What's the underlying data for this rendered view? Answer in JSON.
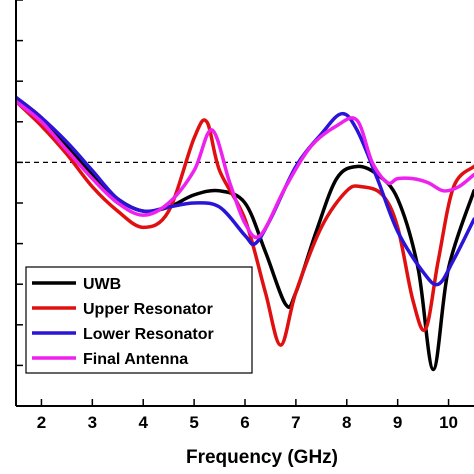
{
  "chart_data": {
    "type": "line",
    "title": "",
    "xlabel": "Frequency (GHz)",
    "ylabel": "",
    "xlim": [
      1.5,
      10.5
    ],
    "ylim": [
      -50,
      0
    ],
    "x_ticks": [
      2,
      3,
      4,
      5,
      6,
      7,
      8,
      9,
      10
    ],
    "x_tick_labels": [
      "2",
      "3",
      "4",
      "5",
      "6",
      "7",
      "8",
      "9",
      "10"
    ],
    "y_ticks": [
      -45,
      -40,
      -35,
      -30,
      -25,
      -20,
      -15,
      -10,
      -5,
      0
    ],
    "reference_line": {
      "y": -20,
      "style": "dashed"
    },
    "grid": false,
    "legend_position": "bottom-left",
    "series": [
      {
        "name": "UWB",
        "color": "#000000",
        "x": [
          1.5,
          2.0,
          2.5,
          3.0,
          3.5,
          4.0,
          4.5,
          5.0,
          5.5,
          6.0,
          6.4,
          6.8,
          7.0,
          7.4,
          7.8,
          8.2,
          8.6,
          9.0,
          9.4,
          9.7,
          10.0,
          10.5
        ],
        "y": [
          -12.0,
          -14.5,
          -18.0,
          -21.5,
          -24.5,
          -26.0,
          -25.5,
          -24.0,
          -23.5,
          -25.0,
          -31.0,
          -37.5,
          -36.0,
          -28.5,
          -22.0,
          -20.5,
          -21.5,
          -24.5,
          -33.0,
          -45.5,
          -33.0,
          -23.5
        ]
      },
      {
        "name": "Upper Resonator",
        "color": "#e01010",
        "x": [
          1.5,
          2.0,
          2.5,
          3.0,
          3.5,
          4.0,
          4.5,
          5.0,
          5.25,
          5.5,
          6.0,
          6.4,
          6.7,
          7.0,
          7.5,
          8.0,
          8.3,
          8.7,
          9.0,
          9.3,
          9.55,
          9.8,
          10.1,
          10.5
        ],
        "y": [
          -12.5,
          -15.5,
          -19.0,
          -23.0,
          -26.0,
          -28.0,
          -26.0,
          -17.0,
          -15.0,
          -21.0,
          -27.0,
          -36.0,
          -42.5,
          -36.0,
          -28.0,
          -23.5,
          -23.0,
          -24.0,
          -28.0,
          -37.0,
          -40.5,
          -32.0,
          -23.0,
          -20.5
        ]
      },
      {
        "name": "Lower Resonator",
        "color": "#2a14d8",
        "x": [
          1.5,
          2.0,
          2.5,
          3.0,
          3.5,
          4.0,
          4.5,
          5.0,
          5.5,
          6.0,
          6.2,
          6.5,
          7.0,
          7.5,
          7.9,
          8.2,
          8.6,
          9.0,
          9.5,
          9.8,
          10.1,
          10.5
        ],
        "y": [
          -12.0,
          -14.5,
          -17.5,
          -21.0,
          -24.5,
          -26.0,
          -25.5,
          -25.0,
          -25.5,
          -29.0,
          -30.0,
          -27.0,
          -20.5,
          -16.5,
          -14.0,
          -16.0,
          -22.0,
          -28.5,
          -33.5,
          -35.0,
          -32.0,
          -27.0
        ]
      },
      {
        "name": "Final Antenna",
        "color": "#ee22ee",
        "x": [
          1.5,
          2.0,
          2.5,
          3.0,
          3.5,
          4.0,
          4.5,
          5.0,
          5.35,
          5.7,
          6.0,
          6.3,
          6.8,
          7.3,
          7.8,
          8.2,
          8.5,
          8.8,
          9.0,
          9.3,
          9.6,
          9.9,
          10.2,
          10.5
        ],
        "y": [
          -12.5,
          -15.0,
          -18.5,
          -22.0,
          -25.0,
          -26.5,
          -25.0,
          -21.0,
          -16.0,
          -22.5,
          -27.5,
          -29.0,
          -23.0,
          -18.0,
          -15.5,
          -14.8,
          -20.0,
          -22.5,
          -22.0,
          -22.0,
          -22.5,
          -23.5,
          -23.0,
          -21.5
        ]
      }
    ]
  }
}
